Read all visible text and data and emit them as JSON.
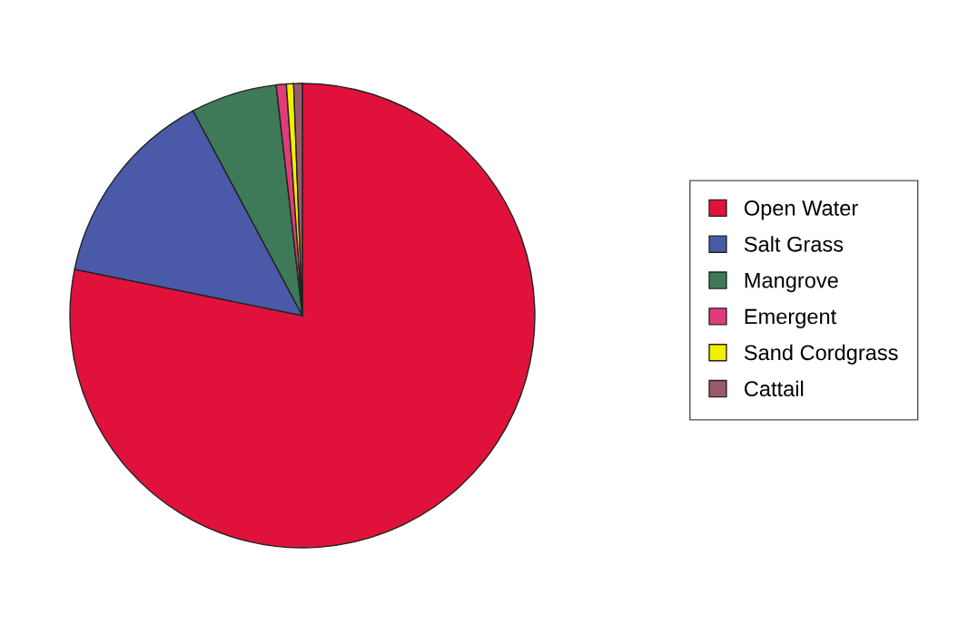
{
  "chart_data": {
    "type": "pie",
    "categories": [
      "Open Water",
      "Salt Grass",
      "Mangrove",
      "Emergent",
      "Sand Cordgrass",
      "Cattail"
    ],
    "values": [
      78.2,
      14.0,
      6.0,
      0.7,
      0.5,
      0.6
    ],
    "colors": [
      "#e0123c",
      "#4b5aa8",
      "#3f7a58",
      "#e03c7c",
      "#f2ee00",
      "#9a5a6a"
    ],
    "legend": "right"
  }
}
